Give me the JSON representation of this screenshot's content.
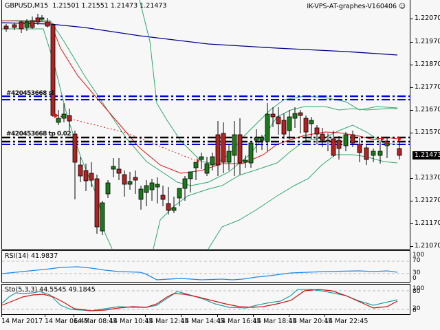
{
  "header": {
    "symbol_title": "GBPUSD,M15  1.21501 1.21551 1.21473 1.21473",
    "brand": "IK-VPS-AT-graphes-V160406",
    "brand_icon": "smiley-icon"
  },
  "price_axis": {
    "labels": [
      "1.22070",
      "1.21970",
      "1.21870",
      "1.21770",
      "1.21670",
      "1.21570",
      "1.21370",
      "1.21270",
      "1.21170",
      "1.21070"
    ],
    "current_price": "1.21473"
  },
  "object_labels": {
    "upper": "#420453668 sl",
    "lower": "#420453668 tp 0.02"
  },
  "rsi": {
    "title": "RSI(14) 41.9837",
    "levels": [
      "100",
      "70",
      "30",
      "0"
    ]
  },
  "stochastic": {
    "title": "Sto(5,3,3) 44.5545 49.1845",
    "levels": [
      "100",
      "80",
      "20",
      "0"
    ]
  },
  "time_axis": {
    "labels": [
      "14 Mar 2017",
      "14 Mar 06:45",
      "14 Mar 08:45",
      "14 Mar 10:45",
      "14 Mar 12:45",
      "14 Mar 14:45",
      "14 Mar 16:45",
      "14 Mar 18:45",
      "14 Mar 20:45",
      "14 Mar 22:45"
    ]
  },
  "colors": {
    "bull": "#1a7a1a",
    "bear": "#b22222",
    "ma_fast": "#e01010",
    "ma_slow": "#00008b",
    "bands": "#2ea86a",
    "rsi_line": "#1e88e5",
    "sto_main": "#20a0a0",
    "sto_signal": "#d01010",
    "order_line_blue": "#0000dd",
    "order_line_black": "#000000"
  },
  "chart_data": [
    {
      "type": "candlestick",
      "title": "GBPUSD,M15",
      "ohlc_header": {
        "open": 1.21501,
        "high": 1.21551,
        "low": 1.21473,
        "close": 1.21473
      },
      "ylim": [
        1.2102,
        1.2215
      ],
      "yticks": [
        1.2207,
        1.2197,
        1.2187,
        1.2177,
        1.2167,
        1.2157,
        1.2147,
        1.2137,
        1.2127,
        1.2117,
        1.2107
      ],
      "x_labels": [
        "14 Mar 2017",
        "14 Mar 06:45",
        "14 Mar 08:45",
        "14 Mar 10:45",
        "14 Mar 12:45",
        "14 Mar 14:45",
        "14 Mar 16:45",
        "14 Mar 18:45",
        "14 Mar 20:45",
        "14 Mar 22:45"
      ],
      "overlays": [
        "Moving Average (red)",
        "Moving Average slow (navy)",
        "Envelope/Bollinger bands (green)"
      ],
      "horizontal_lines": [
        {
          "label": "#420453668 sl",
          "price": 1.2172,
          "color": "blue",
          "style": "dash-dot"
        },
        {
          "label": "#420453668 sl",
          "price": 1.2171,
          "color": "blue",
          "style": "dash-dot"
        },
        {
          "label": "#420453668 tp",
          "price": 1.2155,
          "color": "black",
          "style": "dash-dot"
        },
        {
          "label": "#420453668 tp",
          "price": 1.2154,
          "color": "black",
          "style": "dash-dot"
        },
        {
          "label": "",
          "price": 1.2152,
          "color": "blue",
          "style": "dash-dot"
        }
      ],
      "last_price": 1.21473
    },
    {
      "type": "line",
      "title": "RSI(14) 41.9837",
      "ylim": [
        0,
        100
      ],
      "levels": [
        70,
        30
      ],
      "series": [
        {
          "name": "RSI(14)",
          "last": 41.9837
        }
      ]
    },
    {
      "type": "line",
      "title": "Sto(5,3,3) 44.5545 49.1845",
      "ylim": [
        0,
        100
      ],
      "levels": [
        80,
        20
      ],
      "series": [
        {
          "name": "%K",
          "last": 44.5545
        },
        {
          "name": "%D",
          "last": 49.1845
        }
      ]
    }
  ]
}
